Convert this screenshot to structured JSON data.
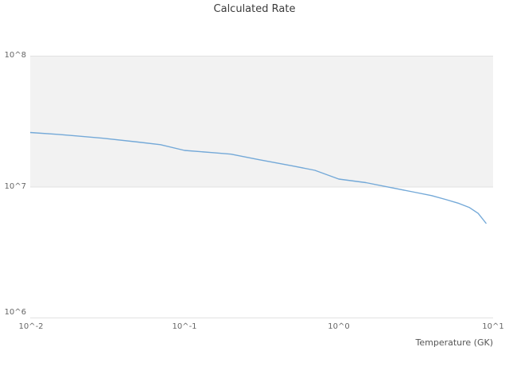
{
  "title": "Calculated Rate",
  "xlabel": "Temperature (GK)",
  "y_ticks": [
    "10^8",
    "10^7",
    "10^6"
  ],
  "x_ticks": [
    "10^-2",
    "10^-1",
    "10^0",
    "10^1"
  ],
  "colors": {
    "line": "#74a9d8",
    "band": "#f2f2f2",
    "grid": "#e2e2e2",
    "tick_text": "#666666",
    "title_text": "#3b3b3b"
  },
  "chart_data": {
    "type": "line",
    "title": "Calculated Rate",
    "xlabel": "Temperature (GK)",
    "ylabel": "",
    "xscale": "log",
    "yscale": "log",
    "xlim": [
      0.01,
      10
    ],
    "ylim": [
      1000000,
      100000000
    ],
    "grid": "horizontal-decades",
    "legend": "none",
    "shaded_band_y": [
      10000000,
      100000000
    ],
    "x": [
      0.01,
      0.015,
      0.02,
      0.03,
      0.05,
      0.07,
      0.1,
      0.15,
      0.2,
      0.3,
      0.5,
      0.7,
      1.0,
      1.5,
      2.0,
      3.0,
      4.0,
      5.0,
      6.0,
      7.0,
      8.0,
      9.0
    ],
    "series": [
      {
        "name": "Calculated Rate",
        "values": [
          26000000,
          25200000,
          24500000,
          23500000,
          22000000,
          21000000,
          19000000,
          18300000,
          17800000,
          16200000,
          14500000,
          13400000,
          11500000,
          10800000,
          10100000,
          9200000,
          8600000,
          8000000,
          7500000,
          7000000,
          6300000,
          5300000
        ]
      }
    ]
  }
}
